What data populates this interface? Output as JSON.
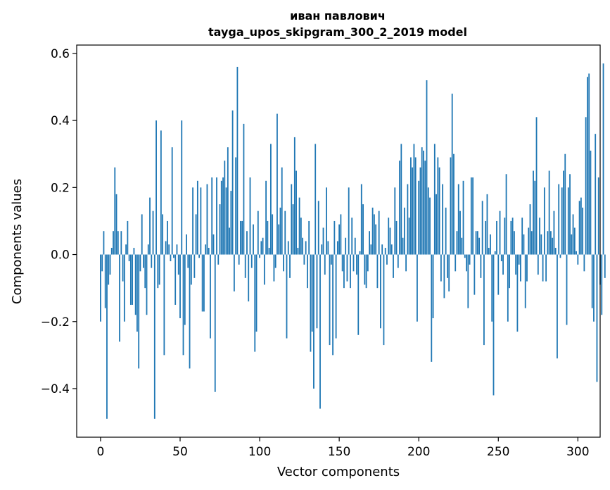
{
  "chart_data": {
    "type": "bar",
    "title_line1": "иван павлович",
    "title_line2": "tayga_upos_skipgram_300_2_2019 model",
    "xlabel": "Vector components",
    "ylabel": "Components values",
    "xlim": [
      -15,
      314
    ],
    "ylim": [
      -0.545,
      0.625
    ],
    "xticks": [
      {
        "value": 0,
        "label": "0"
      },
      {
        "value": 50,
        "label": "50"
      },
      {
        "value": 100,
        "label": "100"
      },
      {
        "value": 150,
        "label": "150"
      },
      {
        "value": 200,
        "label": "200"
      },
      {
        "value": 250,
        "label": "250"
      },
      {
        "value": 300,
        "label": "300"
      }
    ],
    "yticks": [
      {
        "value": -0.4,
        "label": "−0.4"
      },
      {
        "value": -0.2,
        "label": "−0.2"
      },
      {
        "value": 0.0,
        "label": "0.0"
      },
      {
        "value": 0.2,
        "label": "0.2"
      },
      {
        "value": 0.4,
        "label": "0.4"
      },
      {
        "value": 0.6,
        "label": "0.6"
      }
    ],
    "values": [
      -0.2,
      -0.05,
      0.07,
      -0.16,
      -0.49,
      -0.09,
      -0.06,
      0.02,
      0.07,
      0.26,
      0.18,
      0.07,
      -0.26,
      0.07,
      -0.08,
      -0.2,
      0.03,
      0.1,
      -0.02,
      -0.15,
      -0.15,
      0.02,
      -0.18,
      -0.23,
      -0.34,
      -0.05,
      0.12,
      -0.04,
      -0.1,
      -0.18,
      0.03,
      0.17,
      -0.04,
      0.13,
      -0.49,
      0.4,
      -0.1,
      -0.09,
      0.37,
      0.12,
      -0.3,
      0.04,
      0.1,
      0.03,
      -0.02,
      0.32,
      -0.01,
      -0.15,
      0.03,
      -0.06,
      -0.19,
      0.4,
      -0.3,
      -0.21,
      0.06,
      -0.04,
      -0.34,
      -0.09,
      0.2,
      -0.07,
      0.12,
      0.22,
      -0.01,
      0.2,
      -0.17,
      -0.17,
      0.03,
      0.21,
      0.02,
      -0.25,
      0.23,
      0.06,
      -0.41,
      0.23,
      -0.03,
      0.15,
      0.22,
      0.23,
      0.28,
      0.2,
      0.32,
      0.08,
      0.19,
      0.43,
      -0.11,
      0.29,
      0.56,
      -0.03,
      0.1,
      0.1,
      0.39,
      -0.07,
      0.07,
      -0.14,
      0.23,
      -0.04,
      0.09,
      -0.29,
      -0.23,
      0.13,
      -0.01,
      0.04,
      0.05,
      -0.09,
      0.22,
      0.1,
      0.02,
      0.33,
      0.12,
      -0.08,
      -0.04,
      0.42,
      0.09,
      0.14,
      0.26,
      -0.05,
      0.13,
      -0.25,
      0.04,
      -0.07,
      0.21,
      0.15,
      0.35,
      0.25,
      0.02,
      0.17,
      0.11,
      0.05,
      -0.03,
      0.04,
      -0.1,
      0.1,
      -0.29,
      -0.23,
      -0.4,
      0.33,
      -0.22,
      0.16,
      -0.46,
      0.03,
      0.08,
      -0.06,
      0.2,
      0.04,
      -0.27,
      -0.03,
      -0.3,
      0.1,
      -0.25,
      0.04,
      0.09,
      0.12,
      -0.05,
      -0.1,
      0.05,
      -0.08,
      0.2,
      -0.1,
      0.11,
      -0.05,
      0.05,
      -0.06,
      -0.24,
      0.01,
      0.21,
      0.15,
      -0.09,
      -0.1,
      -0.05,
      0.07,
      0.03,
      0.14,
      0.12,
      0.09,
      -0.1,
      0.13,
      -0.22,
      0.03,
      -0.27,
      0.02,
      -0.03,
      0.11,
      0.08,
      0.03,
      -0.07,
      0.2,
      0.1,
      -0.04,
      0.28,
      0.33,
      0.05,
      0.14,
      -0.05,
      0.21,
      0.11,
      0.29,
      0.26,
      0.33,
      0.29,
      -0.2,
      0.22,
      0.26,
      0.32,
      0.31,
      0.28,
      0.52,
      0.2,
      0.17,
      -0.32,
      -0.19,
      0.33,
      0.18,
      0.29,
      0.26,
      -0.08,
      0.21,
      -0.13,
      0.14,
      -0.07,
      -0.11,
      0.29,
      0.48,
      0.3,
      -0.05,
      0.07,
      0.21,
      0.13,
      0.05,
      0.22,
      -0.01,
      -0.05,
      -0.16,
      -0.03,
      0.23,
      0.23,
      -0.12,
      0.07,
      0.07,
      0.05,
      -0.07,
      0.16,
      -0.27,
      0.1,
      0.18,
      0.02,
      0.06,
      -0.2,
      -0.42,
      0.01,
      0.1,
      -0.12,
      0.13,
      -0.02,
      -0.06,
      0.11,
      0.24,
      -0.2,
      -0.1,
      0.1,
      0.11,
      0.07,
      -0.06,
      -0.23,
      -0.03,
      -0.08,
      0.11,
      0.06,
      -0.16,
      -0.08,
      0.08,
      0.15,
      0.07,
      0.25,
      0.22,
      0.41,
      -0.06,
      0.11,
      0.06,
      -0.08,
      0.2,
      -0.08,
      0.07,
      0.25,
      0.07,
      0.05,
      0.13,
      0.02,
      -0.31,
      0.21,
      -0.01,
      0.2,
      0.25,
      0.3,
      -0.21,
      0.2,
      0.24,
      0.06,
      0.12,
      0.08,
      0.01,
      -0.03,
      0.16,
      0.17,
      0.14,
      -0.05,
      0.41,
      0.53,
      0.54,
      0.31,
      -0.16,
      -0.2,
      0.36,
      -0.38,
      0.23,
      -0.09,
      -0.18,
      0.57,
      -0.07
    ]
  }
}
